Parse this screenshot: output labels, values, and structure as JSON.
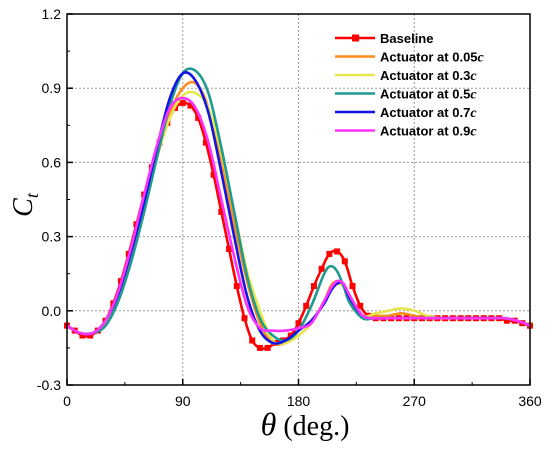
{
  "chart_data": {
    "type": "line",
    "title": "",
    "xlabel_symbol": "θ",
    "xlabel_text": " (deg.)",
    "ylabel_main": "C",
    "ylabel_sub": "t",
    "xlim": [
      0,
      360
    ],
    "ylim": [
      -0.3,
      1.2
    ],
    "xticks": [
      0,
      90,
      180,
      270,
      360
    ],
    "yticks": [
      -0.3,
      0.0,
      0.3,
      0.6,
      0.9,
      1.2
    ],
    "xtick_labels": [
      "0",
      "90",
      "180",
      "270",
      "360"
    ],
    "ytick_labels": [
      "-0.3",
      "0.0",
      "0.3",
      "0.6",
      "0.9",
      "1.2"
    ],
    "grid": true,
    "legend_position": "top-right",
    "series": [
      {
        "name": "Baseline",
        "name_prefix": "Baseline",
        "name_italic": "",
        "color": "#ff0000",
        "marker": "square",
        "x": [
          0,
          6,
          12,
          18,
          24,
          30,
          36,
          42,
          48,
          54,
          60,
          66,
          72,
          78,
          84,
          90,
          96,
          102,
          108,
          114,
          120,
          126,
          132,
          138,
          144,
          150,
          156,
          162,
          168,
          174,
          180,
          186,
          192,
          198,
          204,
          210,
          216,
          222,
          228,
          234,
          240,
          246,
          252,
          258,
          264,
          270,
          276,
          282,
          288,
          294,
          300,
          306,
          312,
          318,
          324,
          330,
          336,
          342,
          348,
          354,
          360
        ],
        "y": [
          -0.06,
          -0.08,
          -0.1,
          -0.1,
          -0.08,
          -0.04,
          0.03,
          0.12,
          0.23,
          0.35,
          0.47,
          0.58,
          0.68,
          0.76,
          0.82,
          0.84,
          0.83,
          0.78,
          0.68,
          0.55,
          0.4,
          0.25,
          0.1,
          -0.03,
          -0.12,
          -0.15,
          -0.15,
          -0.13,
          -0.12,
          -0.1,
          -0.05,
          0.02,
          0.1,
          0.17,
          0.23,
          0.24,
          0.2,
          0.1,
          0.02,
          -0.02,
          -0.03,
          -0.03,
          -0.03,
          -0.03,
          -0.03,
          -0.03,
          -0.03,
          -0.03,
          -0.03,
          -0.03,
          -0.03,
          -0.03,
          -0.03,
          -0.03,
          -0.03,
          -0.03,
          -0.03,
          -0.04,
          -0.04,
          -0.05,
          -0.06
        ]
      },
      {
        "name": "Actuator at 0.05c",
        "name_prefix": "Actuator at 0.05",
        "name_italic": "c",
        "color": "#ff8c1a",
        "marker": "none",
        "x": [
          0,
          10,
          20,
          30,
          40,
          50,
          60,
          70,
          80,
          90,
          100,
          110,
          120,
          130,
          140,
          150,
          160,
          170,
          180,
          190,
          200,
          205,
          210,
          215,
          220,
          230,
          240,
          250,
          260,
          270,
          280,
          290,
          300,
          310,
          320,
          330,
          340,
          350,
          360
        ],
        "y": [
          -0.06,
          -0.09,
          -0.09,
          -0.05,
          0.06,
          0.22,
          0.42,
          0.63,
          0.8,
          0.9,
          0.92,
          0.82,
          0.6,
          0.35,
          0.12,
          -0.05,
          -0.13,
          -0.13,
          -0.1,
          -0.05,
          0.04,
          0.1,
          0.12,
          0.1,
          0.05,
          -0.02,
          -0.02,
          -0.02,
          -0.01,
          -0.02,
          -0.03,
          -0.03,
          -0.03,
          -0.03,
          -0.03,
          -0.03,
          -0.03,
          -0.04,
          -0.06
        ]
      },
      {
        "name": "Actuator at 0.3c",
        "name_prefix": "Actuator at 0.3",
        "name_italic": "c",
        "color": "#e6e64d",
        "marker": "none",
        "x": [
          0,
          10,
          20,
          30,
          40,
          50,
          60,
          70,
          80,
          90,
          100,
          110,
          120,
          130,
          140,
          150,
          160,
          170,
          180,
          190,
          200,
          205,
          210,
          215,
          220,
          230,
          240,
          250,
          260,
          270,
          280,
          290,
          300,
          310,
          320,
          330,
          340,
          350,
          360
        ],
        "y": [
          -0.06,
          -0.09,
          -0.09,
          -0.05,
          0.06,
          0.22,
          0.42,
          0.62,
          0.78,
          0.87,
          0.88,
          0.82,
          0.64,
          0.4,
          0.16,
          0.0,
          -0.12,
          -0.13,
          -0.1,
          -0.05,
          0.04,
          0.09,
          0.11,
          0.1,
          0.05,
          -0.02,
          -0.01,
          0.0,
          0.01,
          0.0,
          -0.02,
          -0.03,
          -0.03,
          -0.03,
          -0.03,
          -0.03,
          -0.03,
          -0.04,
          -0.06
        ]
      },
      {
        "name": "Actuator at 0.5c",
        "name_prefix": "Actuator at 0.5",
        "name_italic": "c",
        "color": "#1f9a8f",
        "marker": "none",
        "x": [
          0,
          10,
          20,
          30,
          40,
          50,
          60,
          70,
          80,
          90,
          100,
          110,
          120,
          130,
          140,
          150,
          160,
          170,
          180,
          190,
          200,
          205,
          210,
          215,
          220,
          230,
          240,
          250,
          260,
          270,
          280,
          290,
          300,
          310,
          320,
          330,
          340,
          350,
          360
        ],
        "y": [
          -0.06,
          -0.09,
          -0.09,
          -0.06,
          0.04,
          0.2,
          0.4,
          0.62,
          0.83,
          0.96,
          0.97,
          0.88,
          0.66,
          0.4,
          0.14,
          -0.03,
          -0.1,
          -0.12,
          -0.08,
          0.02,
          0.15,
          0.18,
          0.16,
          0.1,
          0.03,
          -0.03,
          -0.03,
          -0.03,
          -0.03,
          -0.03,
          -0.03,
          -0.03,
          -0.03,
          -0.03,
          -0.03,
          -0.03,
          -0.03,
          -0.04,
          -0.06
        ]
      },
      {
        "name": "Actuator at 0.7c",
        "name_prefix": "Actuator at 0.7",
        "name_italic": "c",
        "color": "#1414e6",
        "marker": "none",
        "x": [
          0,
          10,
          20,
          30,
          40,
          50,
          60,
          70,
          80,
          90,
          100,
          110,
          120,
          130,
          140,
          150,
          160,
          170,
          180,
          190,
          200,
          205,
          210,
          215,
          220,
          230,
          240,
          250,
          260,
          270,
          280,
          290,
          300,
          310,
          320,
          330,
          340,
          350,
          360
        ],
        "y": [
          -0.06,
          -0.09,
          -0.09,
          -0.04,
          0.07,
          0.24,
          0.44,
          0.66,
          0.86,
          0.96,
          0.93,
          0.8,
          0.56,
          0.3,
          0.06,
          -0.08,
          -0.13,
          -0.12,
          -0.08,
          -0.04,
          0.03,
          0.08,
          0.11,
          0.11,
          0.05,
          -0.02,
          -0.03,
          -0.03,
          -0.03,
          -0.03,
          -0.03,
          -0.03,
          -0.03,
          -0.03,
          -0.03,
          -0.03,
          -0.03,
          -0.04,
          -0.06
        ]
      },
      {
        "name": "Actuator at 0.9c",
        "name_prefix": "Actuator at 0.9",
        "name_italic": "c",
        "color": "#ff33ff",
        "marker": "none",
        "x": [
          0,
          10,
          20,
          30,
          40,
          50,
          60,
          70,
          80,
          90,
          100,
          110,
          120,
          130,
          140,
          150,
          160,
          170,
          180,
          190,
          200,
          205,
          210,
          215,
          220,
          230,
          240,
          250,
          260,
          270,
          280,
          290,
          300,
          310,
          320,
          330,
          340,
          350,
          360
        ],
        "y": [
          -0.06,
          -0.09,
          -0.09,
          -0.04,
          0.08,
          0.26,
          0.47,
          0.67,
          0.82,
          0.86,
          0.82,
          0.68,
          0.45,
          0.22,
          0.02,
          -0.07,
          -0.08,
          -0.08,
          -0.07,
          -0.05,
          0.04,
          0.09,
          0.12,
          0.11,
          0.06,
          -0.02,
          -0.03,
          -0.03,
          -0.03,
          -0.03,
          -0.03,
          -0.03,
          -0.03,
          -0.03,
          -0.03,
          -0.03,
          -0.03,
          -0.04,
          -0.06
        ]
      }
    ]
  }
}
